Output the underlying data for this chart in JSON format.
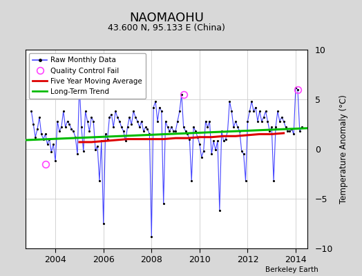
{
  "title": "NAOMAOHU",
  "subtitle": "43.600 N, 95.133 E (China)",
  "ylabel": "Temperature Anomaly (°C)",
  "attribution": "Berkeley Earth",
  "xlim": [
    2002.75,
    2014.5
  ],
  "ylim": [
    -10,
    10
  ],
  "yticks": [
    -10,
    -5,
    0,
    5,
    10
  ],
  "xticks": [
    2004,
    2006,
    2008,
    2010,
    2012,
    2014
  ],
  "fig_bg_color": "#d8d8d8",
  "plot_bg_color": "#ffffff",
  "raw_color": "#4444ff",
  "ma_color": "#dd0000",
  "trend_color": "#00bb00",
  "qc_color": "#ff44ff",
  "raw_data": {
    "times": [
      2003.0,
      2003.083,
      2003.167,
      2003.25,
      2003.333,
      2003.417,
      2003.5,
      2003.583,
      2003.667,
      2003.75,
      2003.833,
      2003.917,
      2004.0,
      2004.083,
      2004.167,
      2004.25,
      2004.333,
      2004.417,
      2004.5,
      2004.583,
      2004.667,
      2004.75,
      2004.833,
      2004.917,
      2005.0,
      2005.083,
      2005.167,
      2005.25,
      2005.333,
      2005.417,
      2005.5,
      2005.583,
      2005.667,
      2005.75,
      2005.833,
      2005.917,
      2006.0,
      2006.083,
      2006.167,
      2006.25,
      2006.333,
      2006.417,
      2006.5,
      2006.583,
      2006.667,
      2006.75,
      2006.833,
      2006.917,
      2007.0,
      2007.083,
      2007.167,
      2007.25,
      2007.333,
      2007.417,
      2007.5,
      2007.583,
      2007.667,
      2007.75,
      2007.833,
      2007.917,
      2008.0,
      2008.083,
      2008.167,
      2008.25,
      2008.333,
      2008.417,
      2008.5,
      2008.583,
      2008.667,
      2008.75,
      2008.833,
      2008.917,
      2009.0,
      2009.083,
      2009.167,
      2009.25,
      2009.333,
      2009.417,
      2009.5,
      2009.583,
      2009.667,
      2009.75,
      2009.833,
      2009.917,
      2010.0,
      2010.083,
      2010.167,
      2010.25,
      2010.333,
      2010.417,
      2010.5,
      2010.583,
      2010.667,
      2010.75,
      2010.833,
      2010.917,
      2011.0,
      2011.083,
      2011.167,
      2011.25,
      2011.333,
      2011.417,
      2011.5,
      2011.583,
      2011.667,
      2011.75,
      2011.833,
      2011.917,
      2012.0,
      2012.083,
      2012.167,
      2012.25,
      2012.333,
      2012.417,
      2012.5,
      2012.583,
      2012.667,
      2012.75,
      2012.833,
      2012.917,
      2013.0,
      2013.083,
      2013.167,
      2013.25,
      2013.333,
      2013.417,
      2013.5,
      2013.583,
      2013.667,
      2013.75,
      2013.833,
      2013.917,
      2014.0,
      2014.083,
      2014.167,
      2014.25
    ],
    "values": [
      3.8,
      2.5,
      1.2,
      2.0,
      3.2,
      1.5,
      1.0,
      1.5,
      0.5,
      1.0,
      -0.3,
      0.5,
      -1.2,
      2.8,
      1.8,
      2.2,
      3.8,
      2.2,
      2.8,
      2.5,
      2.0,
      1.8,
      1.2,
      -0.5,
      6.5,
      2.2,
      -0.2,
      3.8,
      2.8,
      1.8,
      3.2,
      2.8,
      -0.1,
      0.3,
      -3.2,
      0.8,
      -7.5,
      1.5,
      1.0,
      3.2,
      3.5,
      2.2,
      3.8,
      3.2,
      2.8,
      2.2,
      1.8,
      0.8,
      2.2,
      3.2,
      2.5,
      3.8,
      3.2,
      2.8,
      2.2,
      2.8,
      1.8,
      2.2,
      2.0,
      1.5,
      -8.8,
      4.2,
      4.8,
      2.8,
      4.2,
      3.8,
      -5.5,
      2.8,
      2.2,
      1.8,
      2.2,
      1.8,
      1.8,
      2.8,
      3.8,
      5.5,
      2.2,
      1.8,
      1.5,
      1.0,
      -3.2,
      2.2,
      1.8,
      1.2,
      0.5,
      -0.8,
      -0.2,
      2.8,
      2.2,
      2.8,
      -0.5,
      0.8,
      -0.1,
      0.8,
      -6.2,
      1.8,
      0.8,
      1.0,
      1.8,
      4.8,
      3.8,
      2.2,
      2.8,
      2.2,
      1.8,
      -0.2,
      -0.5,
      -3.2,
      2.8,
      3.8,
      4.8,
      3.8,
      4.2,
      2.8,
      3.8,
      2.8,
      3.2,
      3.8,
      2.8,
      1.8,
      2.2,
      -3.2,
      2.2,
      3.8,
      2.8,
      3.2,
      2.8,
      2.2,
      1.8,
      1.8,
      2.0,
      1.5,
      6.2,
      6.0,
      1.8,
      2.2
    ]
  },
  "qc_fail_points": [
    [
      2003.583,
      -1.5
    ],
    [
      2009.333,
      5.5
    ],
    [
      2014.083,
      6.0
    ]
  ],
  "moving_avg": {
    "times": [
      2005.0,
      2005.5,
      2006.0,
      2006.5,
      2007.0,
      2007.5,
      2008.0,
      2008.5,
      2009.0,
      2009.5,
      2010.0,
      2010.5,
      2011.0,
      2011.5,
      2012.0,
      2012.5,
      2013.0,
      2013.5
    ],
    "values": [
      0.7,
      0.7,
      0.8,
      0.9,
      1.0,
      1.0,
      1.0,
      1.0,
      1.1,
      1.1,
      1.2,
      1.2,
      1.3,
      1.3,
      1.4,
      1.5,
      1.5,
      1.6
    ]
  },
  "trend": {
    "times": [
      2002.75,
      2014.5
    ],
    "values": [
      0.9,
      2.1
    ]
  }
}
